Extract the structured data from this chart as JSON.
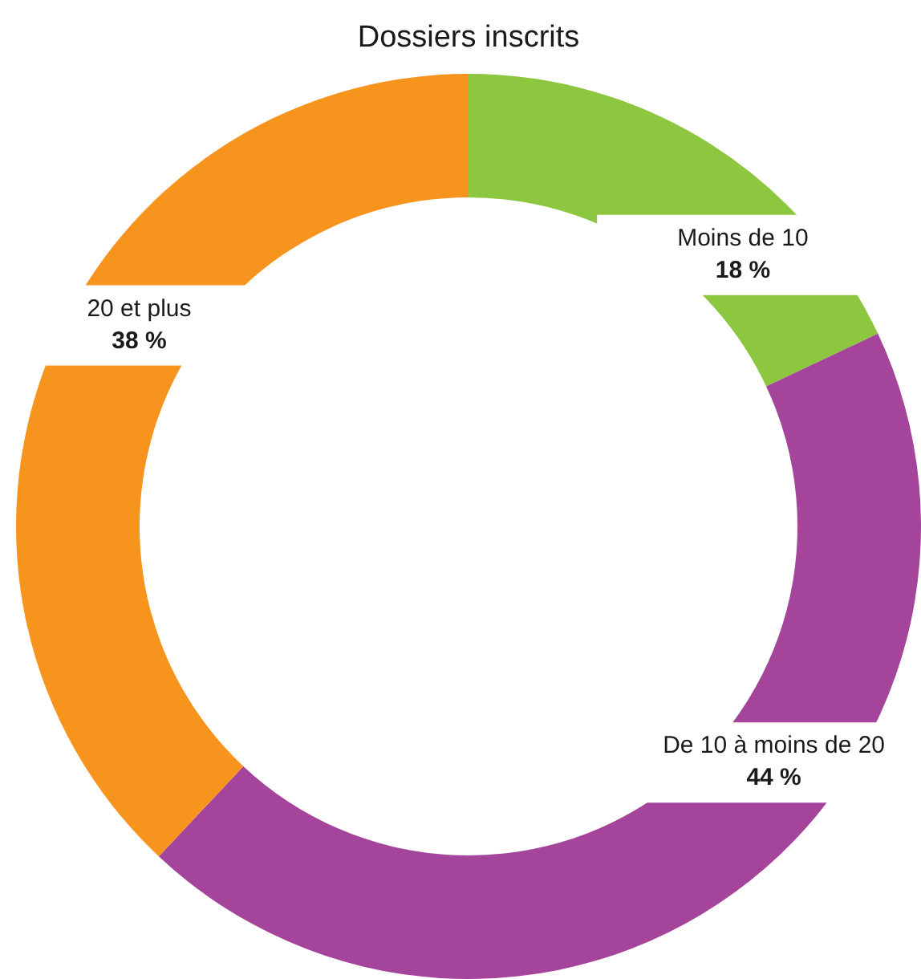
{
  "chart_data": {
    "type": "donut",
    "title": "Dossiers inscrits",
    "categories": [
      "Moins de 10",
      "De 10 à moins de 20",
      "20 et plus"
    ],
    "values": [
      18,
      44,
      38
    ],
    "value_labels": [
      "18 %",
      "44 %",
      "38 %"
    ],
    "colors": [
      "#8dc63f",
      "#a4449a",
      "#f7941d"
    ]
  }
}
